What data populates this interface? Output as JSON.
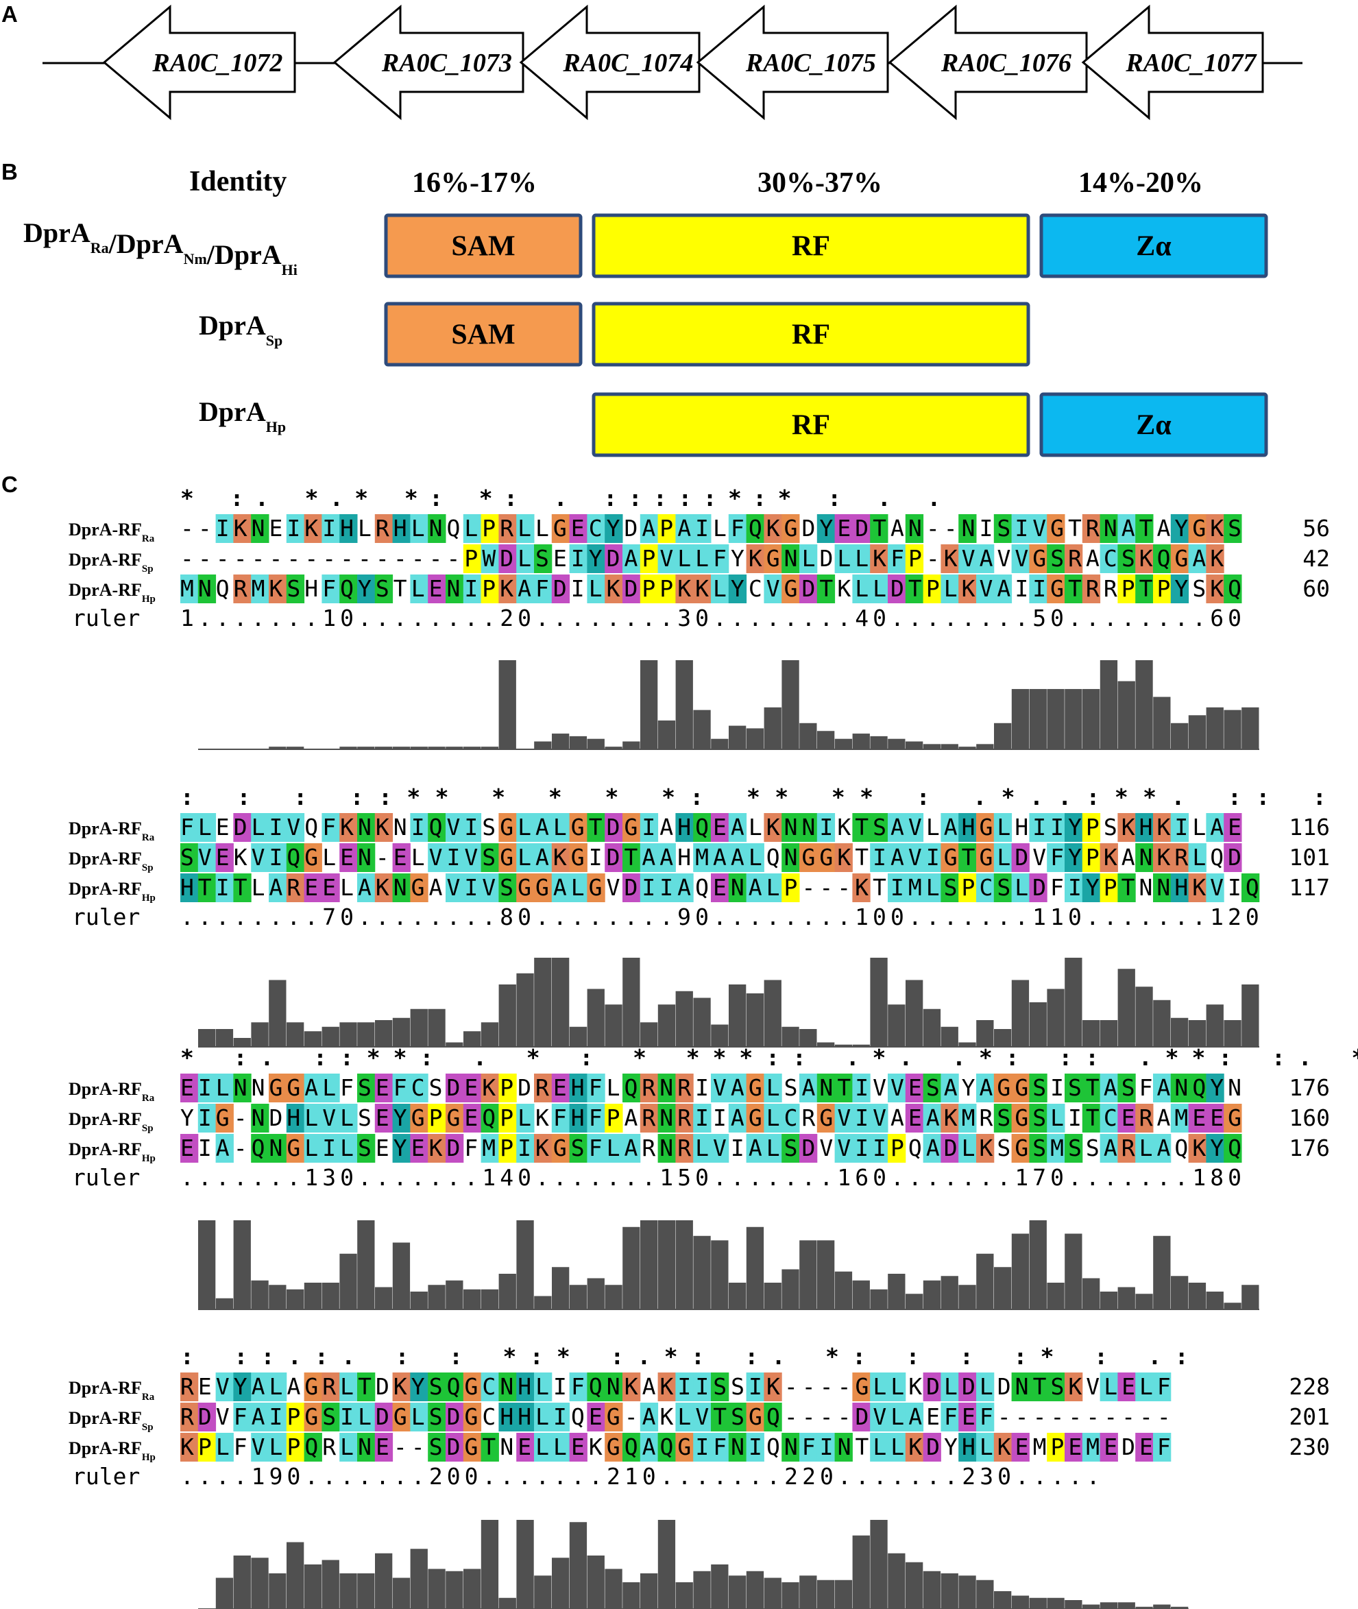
{
  "panels": {
    "a": "A",
    "b": "B",
    "c": "C"
  },
  "genes": [
    "RA0C_1072",
    "RA0C_1073",
    "RA0C_1074",
    "RA0C_1075",
    "RA0C_1076",
    "RA0C_1077"
  ],
  "domain_panel": {
    "identity_label": "Identity",
    "identities": [
      "16%-17%",
      "30%-37%",
      "14%-20%"
    ],
    "row1": {
      "prefix": "DprA",
      "parts": [
        [
          "DprA",
          "Ra"
        ],
        [
          "/DprA",
          "Nm"
        ],
        [
          "/DprA",
          "Hi"
        ]
      ]
    },
    "row2": {
      "name": "DprA",
      "sub": "Sp"
    },
    "row3": {
      "name": "DprA",
      "sub": "Hp"
    },
    "domains": {
      "sam": "SAM",
      "rf": "RF",
      "za": "Zα"
    },
    "colors": {
      "sam": "#f59a4f",
      "rf": "#ffff00",
      "za": "#0cb8f0",
      "border": "#2e4b7b"
    }
  },
  "alignment": {
    "seq_name": "DprA-RF",
    "subs": [
      "Ra",
      "Sp",
      "Hp"
    ],
    "ruler_label": "ruler",
    "blocks": [
      {
        "cons": "   * :.   *.*  *:  *: .    :::::*:*  :  . .",
        "seqs": [
          "--IKNEIKIHLRHLNQLPRLLGECYDAPAILFQKGDYEDTAN--NISIVGTRNATAYGKS",
          "----------------PWDLSEIYDAPVLLFYKGNLDLLKFP-KVAVVGSRACSKQGAK",
          "MNQRMKSHFQYSTLENIPKAFDILKDPPKKLYCVGDTKLLDTPLKVAIIGTRRPTPYSKQ"
        ],
        "ends": [
          "56",
          "42",
          "60"
        ],
        "ruler": "1.......10........20........30........40........50........60",
        "hist": [
          0,
          0,
          0,
          0,
          1,
          1,
          0,
          0,
          1,
          1,
          1,
          1,
          1,
          1,
          1,
          1,
          1,
          34,
          0,
          3,
          6,
          5,
          4,
          1,
          3,
          34,
          11,
          34,
          15,
          4,
          9,
          8,
          16,
          34,
          10,
          7,
          4,
          6,
          5,
          4,
          3,
          2,
          2,
          1,
          2,
          10,
          23,
          23,
          23,
          23,
          23,
          34,
          26,
          34,
          20,
          10,
          13,
          16,
          15,
          16
        ]
      },
      {
        "cons": "     :   : :       ::** * * *  *:  **     **   :     .*..:**. :: : :",
        "seqs": [
          "FLEDLIVQFKNKNIQVISGLALGTDGIAHQEALKNNIKTSAVLAHGLHIIYPSKHKILAE",
          "SVEKVIQGLEN-ELVIVSGLAKGIDTAAHMAALQNGGKTIAVIGTGLDVFYPKANKRLQD",
          "HTITLAREELAKNGAVIVSGGALGVDIIAQENALP---KTIMLSPCSLDFIYPTNNHKVIQ"
        ],
        "ends": [
          "116",
          "101",
          "117"
        ],
        "ruler": "........70........80........90........100.......110.......120",
        "hist": [
          8,
          8,
          4,
          11,
          30,
          11,
          7,
          9,
          11,
          11,
          12,
          13,
          17,
          17,
          2,
          7,
          11,
          28,
          33,
          40,
          40,
          9,
          26,
          19,
          40,
          11,
          19,
          25,
          22,
          10,
          28,
          24,
          30,
          9,
          8,
          2,
          1,
          1,
          40,
          19,
          30,
          17,
          9,
          2,
          12,
          8,
          30,
          20,
          26,
          40,
          12,
          12,
          35,
          27,
          21,
          13,
          12,
          19,
          12,
          28
        ]
      },
      {
        "cons": "*  :.   ::**:    .    *  :    *   ***::  .*.  .*: ::    .**: :.    * :",
        "seqs": [
          "EILNNGGALFSEFCSDEKPDREHFLQRNRIVAGLSANTIVVESAYAGGSISTASFANQYN",
          "YIG-NDHLVLSEYGPGEQPLKFHFPARNRIIAGLCRGVIVAEAKMRSGSLITCERAMEEG",
          "EIA-QNGLILSEYEKDFMPIKGSFLARNRLVIALSDVVIIPQADLKSGSMSSARLAQKYQ"
        ],
        "ends": [
          "176",
          "160",
          "176"
        ],
        "ruler": ".......130.......140.......150.......160.......170.......180",
        "hist": [
          40,
          5,
          40,
          13,
          11,
          9,
          12,
          12,
          25,
          40,
          10,
          30,
          8,
          11,
          13,
          9,
          9,
          16,
          40,
          6,
          19,
          11,
          14,
          11,
          37,
          40,
          40,
          40,
          33,
          31,
          12,
          37,
          12,
          18,
          31,
          31,
          17,
          13,
          9,
          16,
          7,
          13,
          15,
          11,
          25,
          19,
          34,
          40,
          12,
          34,
          14,
          8,
          10,
          7,
          33,
          15,
          12,
          8,
          3,
          11
        ]
      },
      {
        "cons": ":  ::.:.   :  :   *:*  :.*:  :.   *:  :   :     :*  :  .:",
        "seqs": [
          "REVYALAGRLTDKYSQGCNHLIFQNKAKIISSIK----GLLKDLDLDNTSKVLELF",
          "RDVFAIPGSILDGLSDGCHHLIQEG-AKLVTSGQ----DVLAEFEF----------",
          "KPLFVLPQRLNE--SDGTNELLEKGQAQGIFNIQNFINTLLKDYHLKEMPEMEDEF"
        ],
        "ends": [
          "228",
          "201",
          "230"
        ],
        "ruler": "....190.......200.......210.......220.......230.....",
        "hist": [
          0,
          14,
          24,
          23,
          16,
          30,
          20,
          22,
          16,
          16,
          25,
          14,
          27,
          18,
          17,
          18,
          40,
          5,
          40,
          15,
          23,
          39,
          24,
          18,
          12,
          16,
          40,
          12,
          17,
          20,
          15,
          17,
          14,
          12,
          15,
          13,
          13,
          33,
          40,
          25,
          21,
          17,
          16,
          15,
          13,
          8,
          6,
          5,
          5,
          4,
          2,
          3,
          3,
          1,
          2,
          1
        ]
      }
    ],
    "colors": {
      "A": "#63dede",
      "I": "#63dede",
      "L": "#63dede",
      "M": "#63dede",
      "F": "#63dede",
      "V": "#63dede",
      "W": "#63dede",
      "C": "#63dede",
      "K": "#e0825a",
      "R": "#e0825a",
      "D": "#c24ec2",
      "E": "#c24ec2",
      "N": "#1ec437",
      "Q": "#1ec437",
      "S": "#1ec437",
      "T": "#1ec437",
      "G": "#e88c4a",
      "P": "#ffff00",
      "H": "#1aa5a5",
      "Y": "#1aa5a5",
      "hist": "#505050"
    }
  }
}
